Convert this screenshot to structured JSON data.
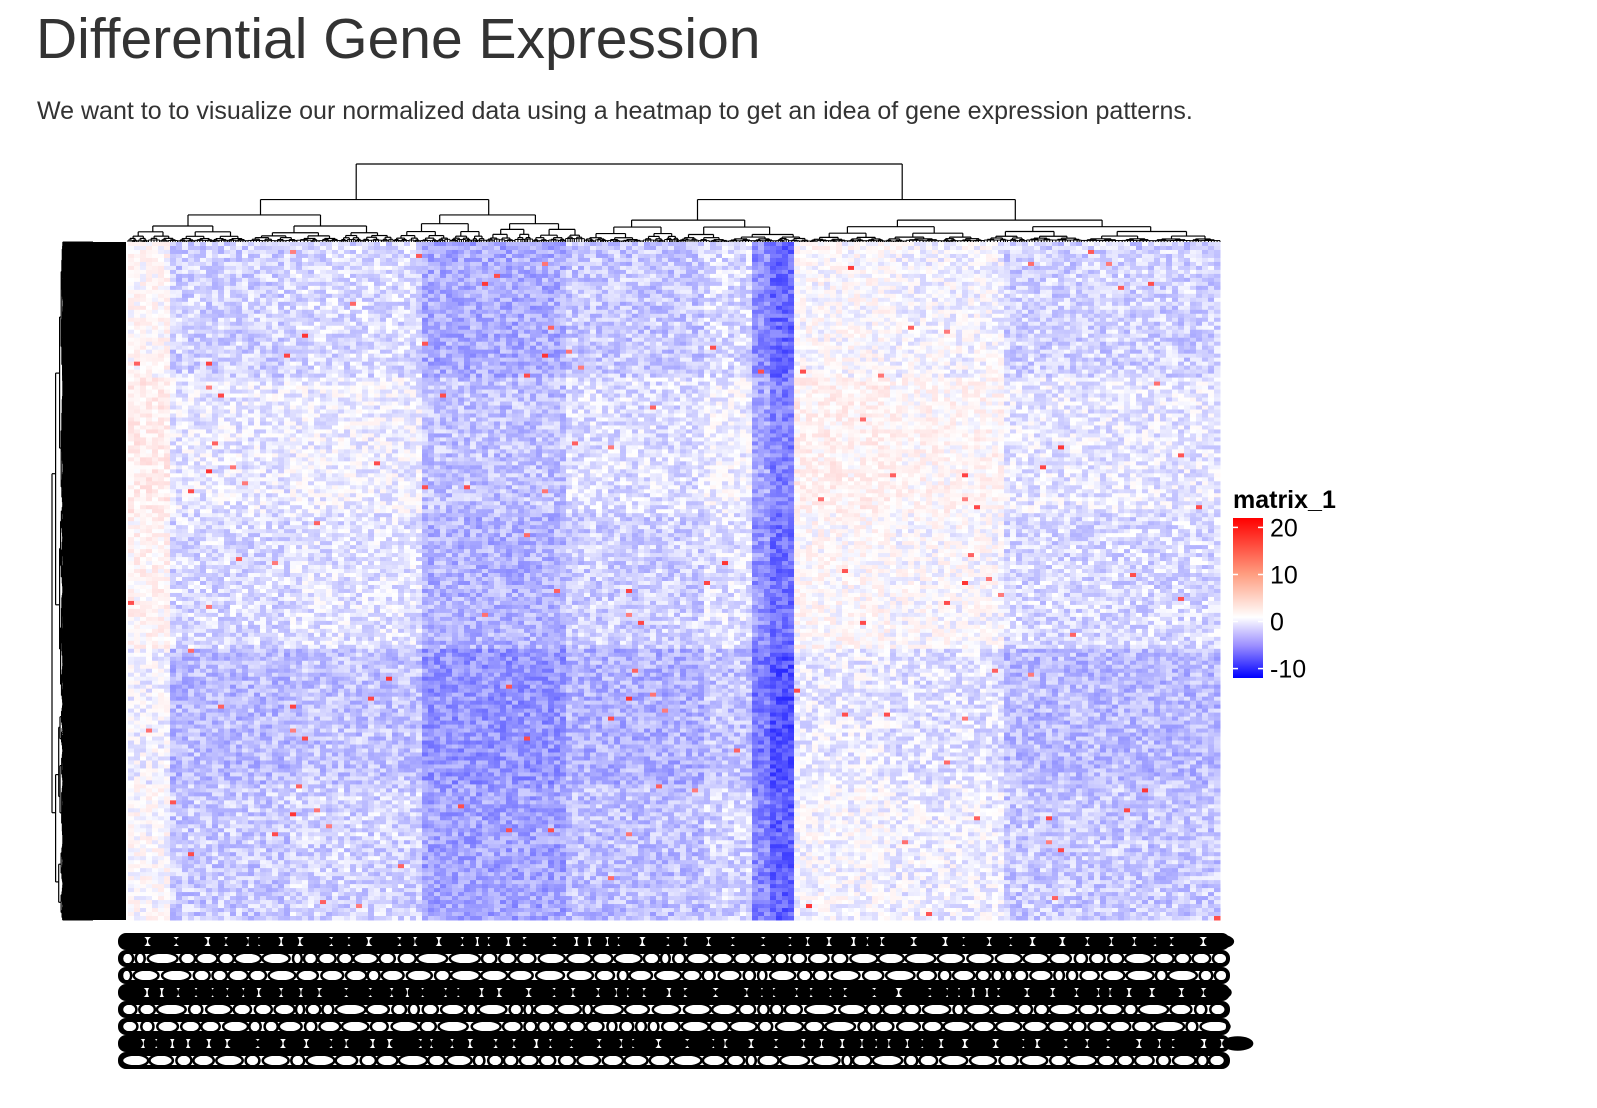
{
  "page": {
    "title": "Differential Gene Expression",
    "intro": "We want to to visualize our normalized data using a heatmap to get an idea of gene expression patterns."
  },
  "chart_data": {
    "type": "heatmap",
    "title": "",
    "xlabel": "",
    "ylabel": "",
    "legend": {
      "title": "matrix_1",
      "ticks": [
        20,
        10,
        0,
        -10
      ],
      "range": [
        -12,
        22
      ],
      "placement": "right",
      "colors": {
        "low": "#0000ff",
        "mid": "#ffffff",
        "high": "#ff0000"
      }
    },
    "rows": "many genes (row labels overplotted, illegible)",
    "columns": "many samples (column labels overplotted, illegible)",
    "row_dendrogram": true,
    "column_dendrogram": true,
    "value_range": [
      -10,
      20
    ],
    "background_value": -1,
    "column_blocks": [
      {
        "from": 0.0,
        "to": 0.04,
        "value": 1.5
      },
      {
        "from": 0.04,
        "to": 0.15,
        "value": -1.5
      },
      {
        "from": 0.15,
        "to": 0.27,
        "value": -1.0
      },
      {
        "from": 0.27,
        "to": 0.4,
        "value": -3.5
      },
      {
        "from": 0.4,
        "to": 0.53,
        "value": -2.0
      },
      {
        "from": 0.53,
        "to": 0.57,
        "value": -1.0
      },
      {
        "from": 0.57,
        "to": 0.59,
        "value": -5.0
      },
      {
        "from": 0.59,
        "to": 0.61,
        "value": -7.0
      },
      {
        "from": 0.61,
        "to": 0.7,
        "value": 1.0
      },
      {
        "from": 0.7,
        "to": 0.8,
        "value": 0.5
      },
      {
        "from": 0.8,
        "to": 1.0,
        "value": -1.5
      }
    ],
    "row_blocks": [
      {
        "from": 0.0,
        "to": 0.2,
        "value": -1.0
      },
      {
        "from": 0.2,
        "to": 0.4,
        "value": 0.5
      },
      {
        "from": 0.4,
        "to": 0.6,
        "value": -0.5
      },
      {
        "from": 0.6,
        "to": 0.8,
        "value": -2.5
      },
      {
        "from": 0.8,
        "to": 1.0,
        "value": -1.5
      }
    ]
  }
}
